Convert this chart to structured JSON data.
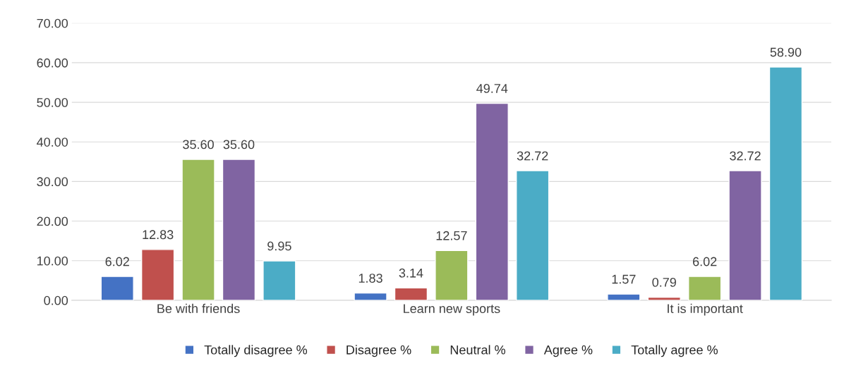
{
  "chart_data": {
    "type": "bar",
    "categories": [
      "Be with friends",
      "Learn new sports",
      "It is important"
    ],
    "series": [
      {
        "name": "Totally disagree %",
        "color": "#4472c4",
        "values": [
          6.02,
          1.83,
          1.57
        ],
        "value_labels": [
          "6.02",
          "1.83",
          "1.57"
        ]
      },
      {
        "name": "Disagree %",
        "color": "#c0504d",
        "values": [
          12.83,
          3.14,
          0.79
        ],
        "value_labels": [
          "12.83",
          "3.14",
          "0.79"
        ]
      },
      {
        "name": "Neutral %",
        "color": "#9bbb59",
        "values": [
          35.6,
          12.57,
          6.02
        ],
        "value_labels": [
          "35.60",
          "12.57",
          "6.02"
        ]
      },
      {
        "name": "Agree %",
        "color": "#8064a2",
        "values": [
          35.6,
          49.74,
          32.72
        ],
        "value_labels": [
          "35.60",
          "49.74",
          "32.72"
        ]
      },
      {
        "name": "Totally agree %",
        "color": "#4bacc6",
        "values": [
          9.95,
          32.72,
          58.9
        ],
        "value_labels": [
          "9.95",
          "32.72",
          "58.90"
        ]
      }
    ],
    "ylim": [
      0,
      70
    ],
    "yticks": [
      {
        "value": 0,
        "label": "0.00"
      },
      {
        "value": 10,
        "label": "10.00"
      },
      {
        "value": 20,
        "label": "20.00"
      },
      {
        "value": 30,
        "label": "30.00"
      },
      {
        "value": 40,
        "label": "40.00"
      },
      {
        "value": 50,
        "label": "50.00"
      },
      {
        "value": 60,
        "label": "60.00"
      },
      {
        "value": 70,
        "label": "70.00"
      }
    ],
    "grid": "y",
    "legend": "bottom"
  }
}
